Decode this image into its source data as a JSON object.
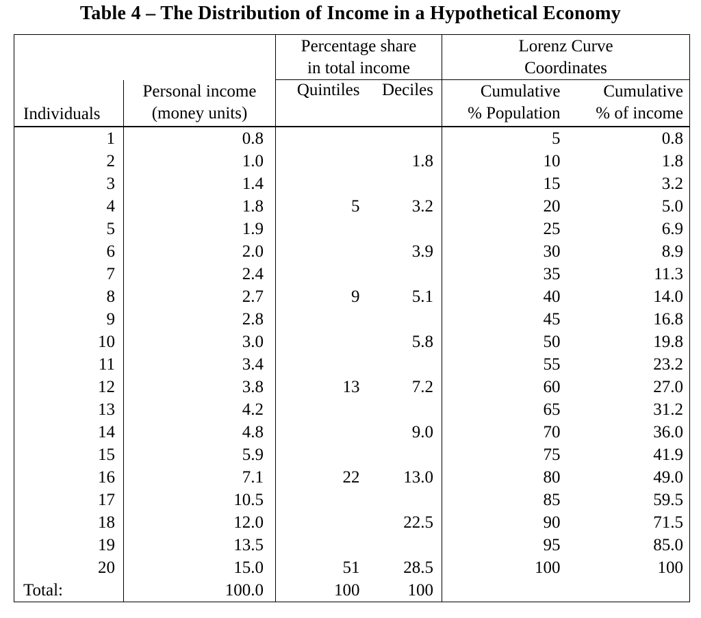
{
  "title": "Table 4 – The Distribution of Income in a Hypothetical Economy",
  "table": {
    "group_share": [
      "Percentage share",
      "in total income"
    ],
    "group_lorenz": [
      "Lorenz Curve",
      "Coordinates"
    ],
    "headers": {
      "individuals": "Individuals",
      "income": [
        "Personal income",
        "(money units)"
      ],
      "quintiles": "Quintiles",
      "deciles": "Deciles",
      "cum_population": [
        "Cumulative",
        "% Population"
      ],
      "cum_income": [
        "Cumulative",
        "% of income"
      ]
    },
    "rows": [
      {
        "cells": [
          "1",
          "0.8",
          "",
          "",
          "5",
          "0.8"
        ]
      },
      {
        "cells": [
          "2",
          "1.0",
          "",
          "1.8",
          "10",
          "1.8"
        ]
      },
      {
        "cells": [
          "3",
          "1.4",
          "",
          "",
          "15",
          "3.2"
        ]
      },
      {
        "cells": [
          "4",
          "1.8",
          "5",
          "3.2",
          "20",
          "5.0"
        ]
      },
      {
        "cells": [
          "5",
          "1.9",
          "",
          "",
          "25",
          "6.9"
        ]
      },
      {
        "cells": [
          "6",
          "2.0",
          "",
          "3.9",
          "30",
          "8.9"
        ]
      },
      {
        "cells": [
          "7",
          "2.4",
          "",
          "",
          "35",
          "11.3"
        ]
      },
      {
        "cells": [
          "8",
          "2.7",
          "9",
          "5.1",
          "40",
          "14.0"
        ]
      },
      {
        "cells": [
          "9",
          "2.8",
          "",
          "",
          "45",
          "16.8"
        ]
      },
      {
        "cells": [
          "10",
          "3.0",
          "",
          "5.8",
          "50",
          "19.8"
        ]
      },
      {
        "cells": [
          "11",
          "3.4",
          "",
          "",
          "55",
          "23.2"
        ]
      },
      {
        "cells": [
          "12",
          "3.8",
          "13",
          "7.2",
          "60",
          "27.0"
        ]
      },
      {
        "cells": [
          "13",
          "4.2",
          "",
          "",
          "65",
          "31.2"
        ]
      },
      {
        "cells": [
          "14",
          "4.8",
          "",
          "9.0",
          "70",
          "36.0"
        ]
      },
      {
        "cells": [
          "15",
          "5.9",
          "",
          "",
          "75",
          "41.9"
        ]
      },
      {
        "cells": [
          "16",
          "7.1",
          "22",
          "13.0",
          "80",
          "49.0"
        ]
      },
      {
        "cells": [
          "17",
          "10.5",
          "",
          "",
          "85",
          "59.5"
        ]
      },
      {
        "cells": [
          "18",
          "12.0",
          "",
          "22.5",
          "90",
          "71.5"
        ]
      },
      {
        "cells": [
          "19",
          "13.5",
          "",
          "",
          "95",
          "85.0"
        ]
      },
      {
        "cells": [
          "20",
          "15.0",
          "51",
          "28.5",
          "100",
          "100"
        ]
      },
      {
        "cells": [
          "Total:",
          "100.0",
          "100",
          "100",
          "",
          ""
        ],
        "total": true
      }
    ]
  }
}
